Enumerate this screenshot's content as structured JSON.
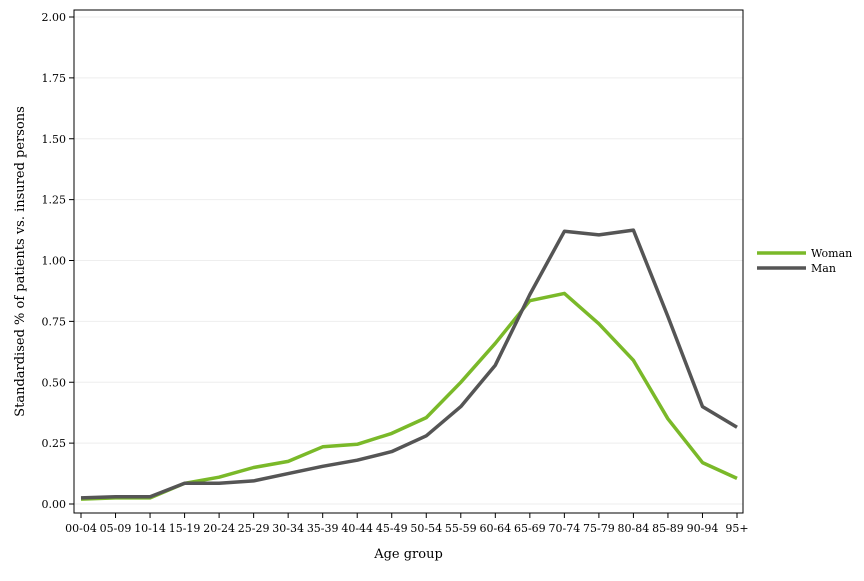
{
  "chart_data": {
    "type": "line",
    "title": "",
    "xlabel": "Age group",
    "ylabel": "Standardised % of patients vs. insured persons",
    "ylim": [
      0,
      2.0
    ],
    "yticks": [
      "0.00",
      "0.25",
      "0.50",
      "0.75",
      "1.00",
      "1.25",
      "1.50",
      "1.75",
      "2.00"
    ],
    "categories": [
      "00-04",
      "05-09",
      "10-14",
      "15-19",
      "20-24",
      "25-29",
      "30-34",
      "35-39",
      "40-44",
      "45-49",
      "50-54",
      "55-59",
      "60-64",
      "65-69",
      "70-74",
      "75-79",
      "80-84",
      "85-89",
      "90-94",
      "95+"
    ],
    "series": [
      {
        "name": "Woman",
        "color": "#7ab929",
        "values": [
          0.02,
          0.025,
          0.025,
          0.085,
          0.11,
          0.15,
          0.175,
          0.235,
          0.245,
          0.29,
          0.355,
          0.5,
          0.66,
          0.835,
          0.865,
          0.74,
          0.59,
          0.35,
          0.17,
          0.105
        ]
      },
      {
        "name": "Man",
        "color": "#555555",
        "values": [
          0.025,
          0.03,
          0.03,
          0.085,
          0.085,
          0.095,
          0.125,
          0.155,
          0.18,
          0.215,
          0.28,
          0.4,
          0.57,
          0.86,
          1.12,
          1.105,
          1.125,
          0.77,
          0.4,
          0.315
        ]
      }
    ],
    "grid": true,
    "legend_position": "right"
  }
}
